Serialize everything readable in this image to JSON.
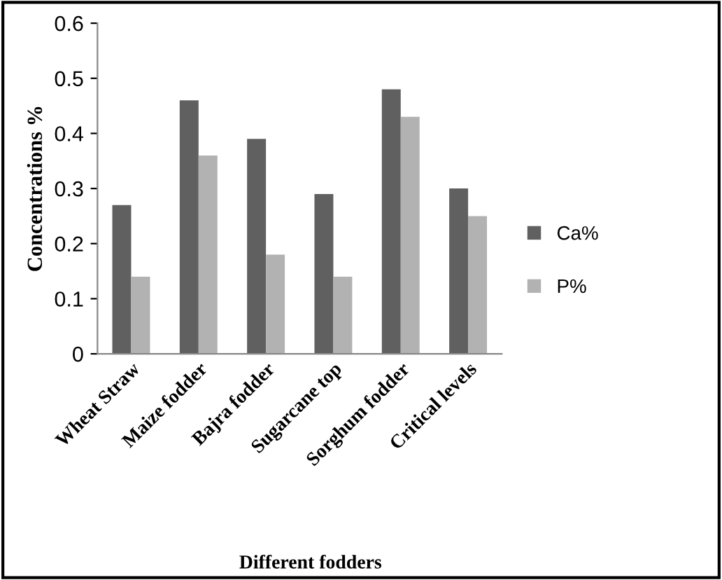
{
  "chart_data": {
    "type": "bar",
    "xlabel": "Different fodders",
    "ylabel": "Concentrations %",
    "categories": [
      "Wheat Straw",
      "Maize fodder",
      "Bajra fodder",
      "Sugarcane top",
      "Sorghum fodder",
      "Critical levels"
    ],
    "series": [
      {
        "name": "Ca%",
        "color": "#606060",
        "values": [
          0.27,
          0.46,
          0.39,
          0.29,
          0.48,
          0.3
        ]
      },
      {
        "name": "P%",
        "color": "#b2b2b2",
        "values": [
          0.14,
          0.36,
          0.18,
          0.14,
          0.43,
          0.25
        ]
      }
    ],
    "ylim": [
      0,
      0.6
    ],
    "yticks": [
      0,
      0.1,
      0.2,
      0.3,
      0.4,
      0.5,
      0.6
    ],
    "grid": false,
    "legend": "right"
  }
}
